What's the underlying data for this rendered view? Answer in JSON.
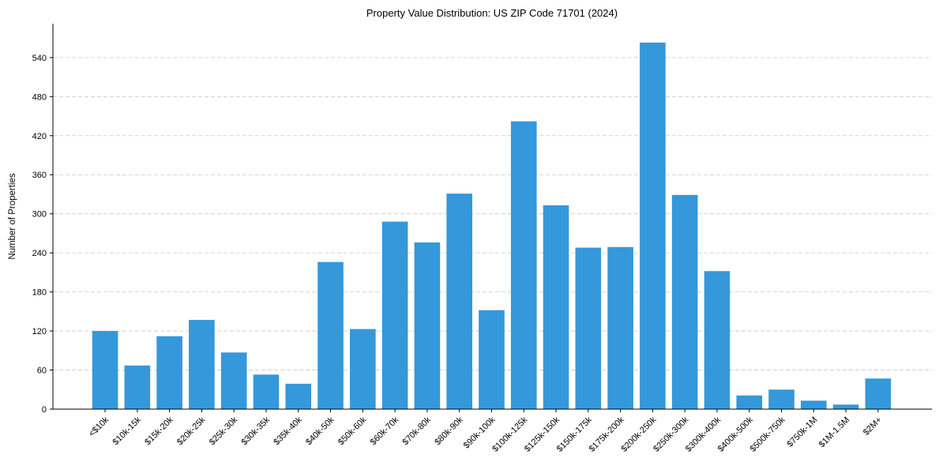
{
  "chart_data": {
    "type": "bar",
    "title": "Property Value Distribution: US ZIP Code 71701 (2024)",
    "xlabel": "",
    "ylabel": "Number of Properties",
    "categories": [
      "<$10k",
      "$10k-15k",
      "$15k-20k",
      "$20k-25k",
      "$25k-30k",
      "$30k-35k",
      "$35k-40k",
      "$40k-50k",
      "$50k-60k",
      "$60k-70k",
      "$70k-80k",
      "$80k-90k",
      "$90k-100k",
      "$100k-125k",
      "$125k-150k",
      "$150k-175k",
      "$175k-200k",
      "$200k-250k",
      "$250k-300k",
      "$300k-400k",
      "$400k-500k",
      "$500k-750k",
      "$750k-1M",
      "$1M-1.5M",
      "$2M+"
    ],
    "values": [
      120,
      67,
      112,
      137,
      87,
      53,
      39,
      226,
      123,
      288,
      256,
      331,
      152,
      442,
      313,
      248,
      249,
      563,
      329,
      212,
      21,
      30,
      13,
      7,
      47
    ],
    "yticks": [
      0,
      60,
      120,
      180,
      240,
      300,
      360,
      420,
      480,
      540
    ],
    "ylim": [
      0,
      592
    ],
    "grid": "y dashed",
    "bar_color": "#3498db"
  }
}
